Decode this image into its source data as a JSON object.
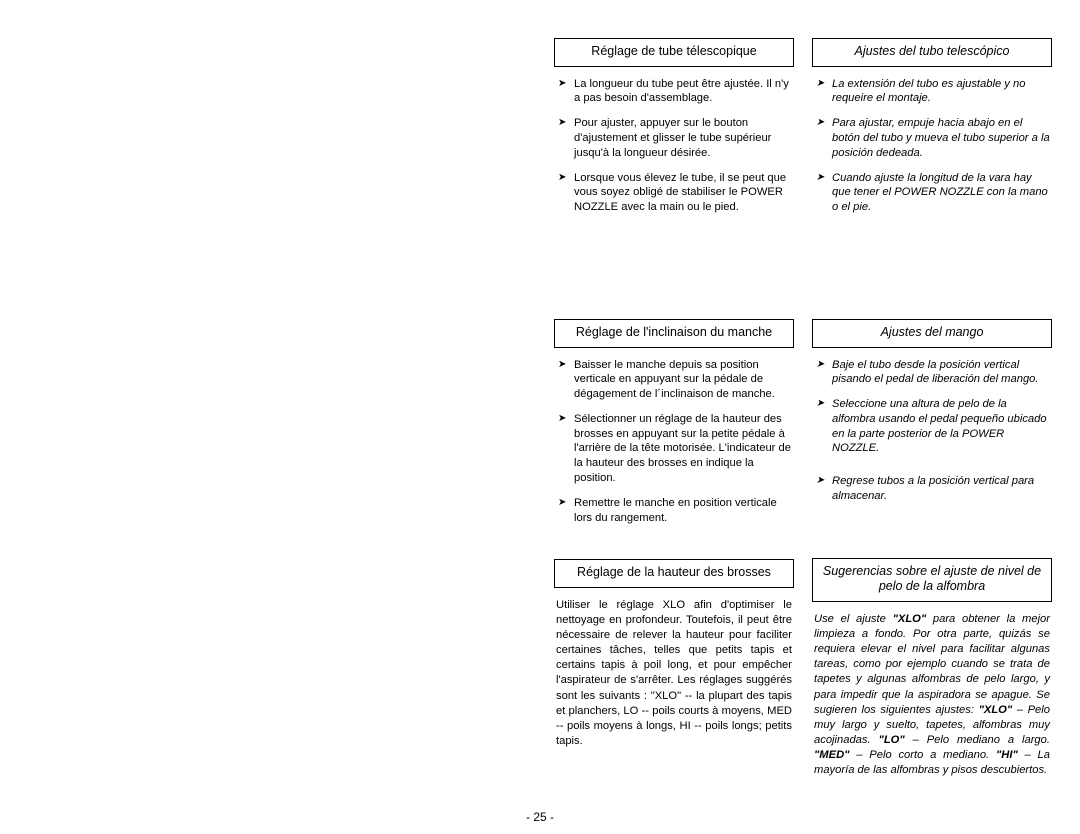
{
  "page_number": "- 25 -",
  "left_column": {
    "s1": {
      "title": "Réglage de tube télescopique",
      "bullets": [
        "La longueur du tube peut être ajustée. Il n'y a pas besoin d'assemblage.",
        "Pour ajuster, appuyer sur le bouton d'ajustement et glisser le tube supérieur jusqu'à la longueur désirée.",
        "Lorsque vous élevez le tube, il se peut que vous soyez obligé de stabiliser le POWER NOZZLE avec la main ou le pied."
      ]
    },
    "s2": {
      "title": "Réglage de l'inclinaison du manche",
      "bullets": [
        "Baisser le manche depuis sa position verticale en appuyant sur la pédale de dégagement de l´inclinaison de manche.",
        "Sélectionner un réglage de la hauteur des brosses en appuyant sur la petite pédale à l'arrière de la tête motorisée. L'indicateur de la hauteur des brosses en indique la position.",
        "Remettre le manche en position verticale lors du rangement."
      ]
    },
    "s3": {
      "title": "Réglage de la hauteur des brosses",
      "para": "Utiliser le réglage  XLO   afin d'optimiser le nettoyage en profondeur. Toutefois, il peut être nécessaire de relever la hauteur pour faciliter certaines tâches, telles que petits tapis et certains tapis à poil long, et pour empêcher l'aspirateur de s'arrêter. Les réglages suggérés sont les suivants :  \"XLO\" -- la plupart des tapis et planchers,  LO   --  poils courts à moyens,   MED   --  poils moyens à longs,   HI   -- poils longs; petits tapis."
    }
  },
  "right_column": {
    "s1": {
      "title": "Ajustes del tubo telescópico",
      "bullets": [
        "La extensión del tubo es ajustable y no requeire el montaje.",
        "Para ajustar, empuje hacia abajo en el botón del tubo y mueva el tubo superior a la posición dedeada.",
        "Cuando ajuste la longitud de la vara hay que tener el POWER NOZZLE con la mano o el pie."
      ]
    },
    "s2": {
      "title": "Ajustes del mango",
      "bullets": [
        "Baje el tubo desde la posición vertical pisando el pedal de liberación del mango.",
        "Seleccione una altura de pelo de la alfombra  usando el pedal pequeño ubicado en la parte posterior de la POWER NOZZLE.",
        "Regrese tubos a la posición vertical para almacenar."
      ]
    },
    "s3": {
      "title": "Sugerencias sobre el ajuste de nivel de pelo de la alfombra",
      "para_parts": [
        {
          "t": "Use el ajuste ",
          "b": false
        },
        {
          "t": "\"XLO\"",
          "b": true
        },
        {
          "t": " para obtener la mejor limpieza a fondo.  Por otra parte, quizás se requiera elevar el nivel para facilitar algunas tareas, como por ejemplo cuando se trata de tapetes y algunas alfombras de pelo largo, y para impedir que la aspiradora se apague.  Se sugieren los siguientes ajustes:  ",
          "b": false
        },
        {
          "t": "\"XLO\"",
          "b": true
        },
        {
          "t": " – Pelo muy largo y suelto, tapetes, alfombras  muy acojinadas.  ",
          "b": false
        },
        {
          "t": "\"LO\"",
          "b": true
        },
        {
          "t": " – Pelo mediano a largo.  ",
          "b": false
        },
        {
          "t": "\"MED\"",
          "b": true
        },
        {
          "t": " – Pelo corto a mediano.  ",
          "b": false
        },
        {
          "t": "\"HI\"",
          "b": true
        },
        {
          "t": " – La mayoría de las alfombras y pisos descubiertos.",
          "b": false
        }
      ]
    }
  }
}
